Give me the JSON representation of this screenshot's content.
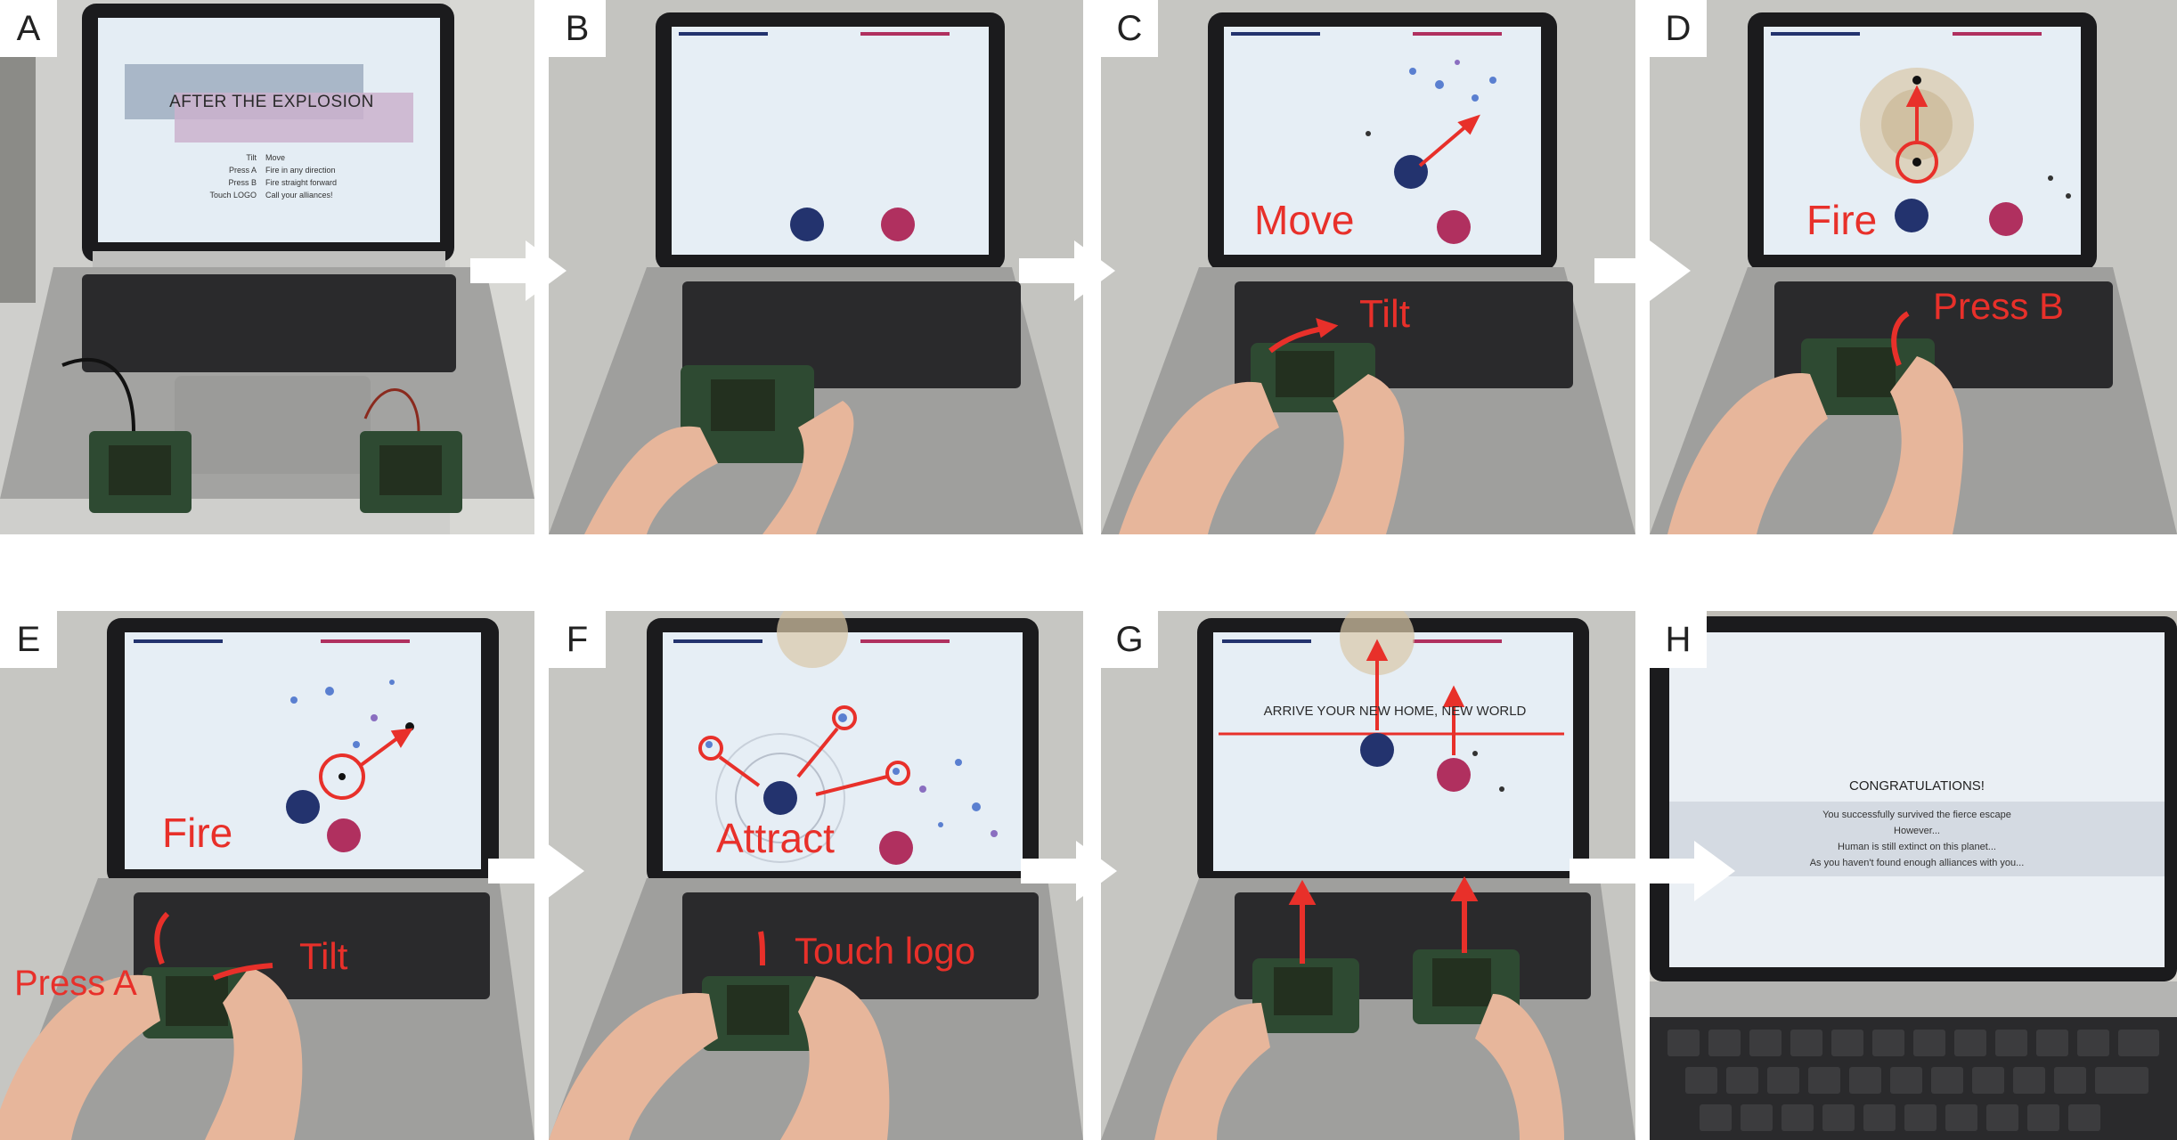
{
  "panels": {
    "A": {
      "label": "A",
      "screen_title": "AFTER THE EXPLOSION",
      "controls": [
        {
          "key": "Tilt",
          "action": "Move"
        },
        {
          "key": "Press A",
          "action": "Fire in any direction"
        },
        {
          "key": "Press B",
          "action": "Fire straight forward"
        },
        {
          "key": "Touch LOGO",
          "action": "Call your alliances!"
        }
      ]
    },
    "B": {
      "label": "B"
    },
    "C": {
      "label": "C",
      "annotations": [
        "Move",
        "Tilt"
      ]
    },
    "D": {
      "label": "D",
      "annotations": [
        "Fire",
        "Press B"
      ]
    },
    "E": {
      "label": "E",
      "annotations": [
        "Fire",
        "Press A",
        "Tilt"
      ]
    },
    "F": {
      "label": "F",
      "annotations": [
        "Attract",
        "Touch logo"
      ]
    },
    "G": {
      "label": "G",
      "screen_text": "ARRIVE YOUR NEW HOME, NEW WORLD"
    },
    "H": {
      "label": "H",
      "screen_title": "CONGRATULATIONS!",
      "screen_lines": [
        "You successfully survived the fierce escape",
        "However...",
        "Human is still extinct on this planet...",
        "As you haven't found enough alliances with you..."
      ]
    }
  },
  "colors": {
    "annotation_red": "#e8302a",
    "player1_blue": "#23336e",
    "player2_pink": "#b0305f",
    "screen_bg": "#e6eef5",
    "flow_arrow": "#ffffff"
  }
}
